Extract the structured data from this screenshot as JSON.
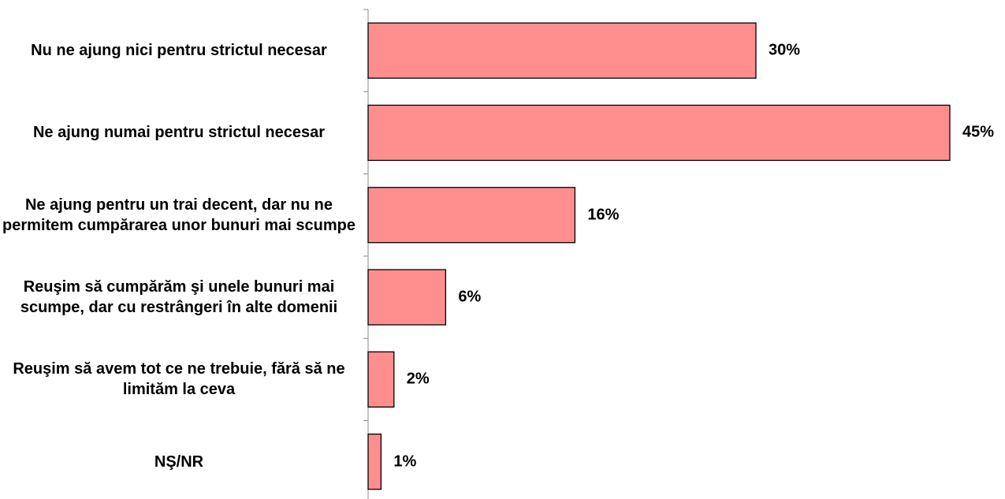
{
  "chart_data": {
    "type": "bar",
    "orientation": "horizontal",
    "categories": [
      "Nu ne ajung nici pentru strictul necesar",
      "Ne ajung numai pentru strictul necesar",
      "Ne ajung pentru un trai decent, dar nu ne permitem cumpărarea unor bunuri mai scumpe",
      "Reuşim să cumpărăm şi unele bunuri mai scumpe, dar cu restrângeri în alte domenii",
      "Reuşim să avem tot ce ne trebuie, fără să ne limităm la ceva",
      "NŞ/NR"
    ],
    "values": [
      30,
      45,
      16,
      6,
      2,
      1
    ],
    "value_labels": [
      "30%",
      "45%",
      "16%",
      "6%",
      "2%",
      "1%"
    ],
    "color": "#ff8f8f"
  }
}
